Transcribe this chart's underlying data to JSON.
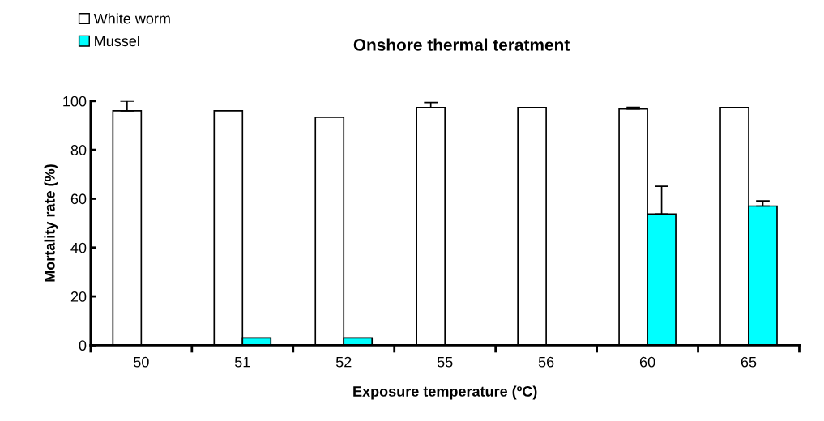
{
  "chart_data": {
    "type": "bar",
    "title": "Onshore thermal teratment",
    "xlabel": "Exposure temperature (ºC)",
    "ylabel": "Mortality rate (%)",
    "categories": [
      "50",
      "51",
      "52",
      "55",
      "56",
      "60",
      "65"
    ],
    "series": [
      {
        "name": "White worm",
        "color": "#ffffff",
        "values": [
          96,
          96,
          93.3,
          97.3,
          97.3,
          96.7,
          97.3
        ],
        "errors": [
          [
            96,
            100
          ],
          null,
          null,
          [
            97.3,
            99.4
          ],
          null,
          [
            96.7,
            97.4
          ],
          null
        ]
      },
      {
        "name": "Mussel",
        "color": "#00ffff",
        "values": [
          null,
          3,
          3,
          null,
          null,
          53.7,
          57
        ],
        "errors": [
          null,
          null,
          null,
          null,
          null,
          [
            53.7,
            65.1
          ],
          [
            57,
            59.1
          ]
        ]
      }
    ],
    "ylim": [
      0,
      100
    ],
    "yticks": [
      0,
      20,
      40,
      60,
      80,
      100
    ],
    "grid": false,
    "legend": "top left"
  }
}
